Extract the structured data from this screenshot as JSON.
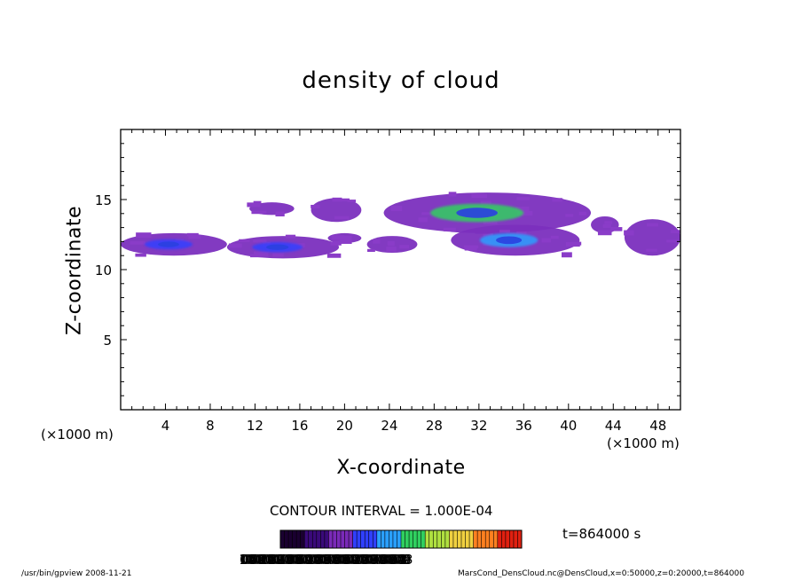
{
  "chart_data": {
    "type": "contour",
    "title": "density of cloud",
    "xlabel": "X-coordinate",
    "ylabel": "Z-coordinate",
    "x_unit": "(×1000 m)",
    "z_unit": "(×1000 m)",
    "xlim": [
      0,
      50
    ],
    "ylim": [
      0,
      20
    ],
    "x_ticks": [
      4,
      8,
      12,
      16,
      20,
      24,
      28,
      32,
      36,
      40,
      44,
      48
    ],
    "y_ticks": [
      5,
      10,
      15
    ],
    "contour_interval_label": "CONTOUR INTERVAL = 1.000E-04",
    "time_label": "t=864000 s",
    "colorbar_labels": "0.10000e-05 0.60000e-04 0.12000e-03 0.18000e-03 0.24000e-03 0.30000e-03 0.36000e-03 0.42000e-03 0.48000e-03 0.54000e-03 0.60000e-03 0.66000e-03 0.72000e-03 0.78000e-03 0.84000e-03 0.90000e-03 0.96000e-03 1.000e-03",
    "colorbar_range": [
      1e-06,
      0.001
    ],
    "cloud_regions": [
      {
        "x": [
          0,
          9.5
        ],
        "z": [
          11.0,
          12.6
        ],
        "peak": 0.00018
      },
      {
        "x": [
          9.5,
          19.5
        ],
        "z": [
          10.8,
          12.4
        ],
        "peak": 0.00016
      },
      {
        "x": [
          18.5,
          21.5
        ],
        "z": [
          11.9,
          12.6
        ],
        "peak": 4e-05
      },
      {
        "x": [
          11.5,
          15.5
        ],
        "z": [
          13.9,
          14.8
        ],
        "peak": 3e-05
      },
      {
        "x": [
          17,
          21.5
        ],
        "z": [
          13.4,
          15.1
        ],
        "peak": 4e-05
      },
      {
        "x": [
          22,
          26.5
        ],
        "z": [
          11.2,
          12.4
        ],
        "peak": 3e-05
      },
      {
        "x": [
          23.5,
          42
        ],
        "z": [
          12.6,
          15.5
        ],
        "peak": 0.0004
      },
      {
        "x": [
          29.5,
          41
        ],
        "z": [
          11.0,
          13.2
        ],
        "peak": 0.0003
      },
      {
        "x": [
          42,
          44.5
        ],
        "z": [
          12.6,
          13.8
        ],
        "peak": 3e-05
      },
      {
        "x": [
          45,
          50
        ],
        "z": [
          11.0,
          13.6
        ],
        "peak": 4e-05
      }
    ],
    "grid": false,
    "colormap": [
      "#1a0030",
      "#3a0a7a",
      "#7a2ab8",
      "#3040ff",
      "#2aa0ff",
      "#30d060",
      "#b0e040",
      "#f0d040",
      "#ff8020",
      "#e02010"
    ]
  },
  "footer": {
    "left": "/usr/bin/gpview   2008-11-21",
    "right": "MarsCond_DensCloud.nc@DensCloud,x=0:50000,z=0:20000,t=864000"
  }
}
